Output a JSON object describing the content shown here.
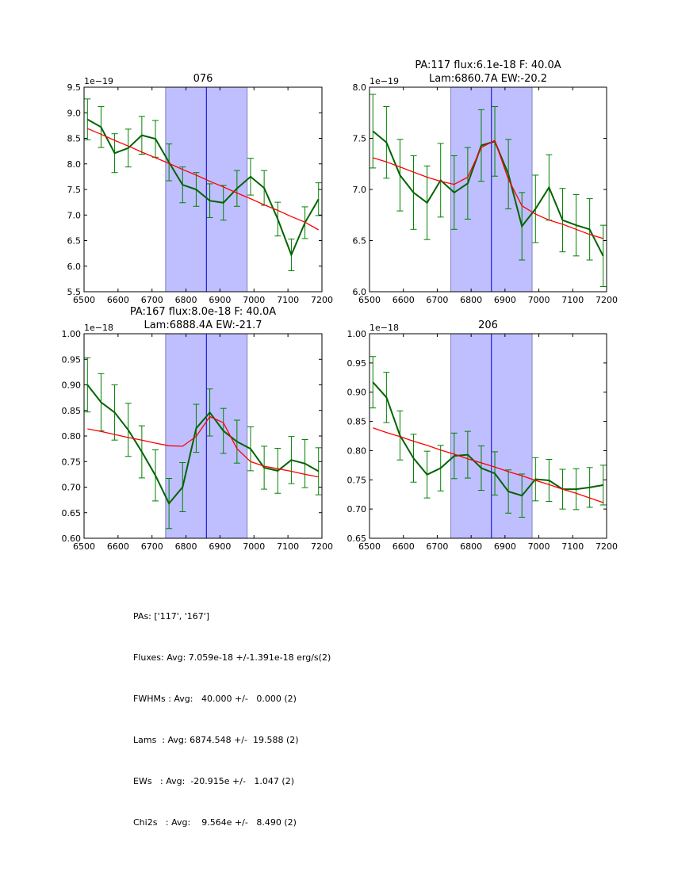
{
  "chart_data": [
    {
      "type": "line",
      "title": [
        "076"
      ],
      "xlabel": "",
      "ylabel": "",
      "xlim": [
        6500,
        7200
      ],
      "ylim": [
        5.5,
        9.5
      ],
      "y_offset_label": "1e−19",
      "xticks": [
        6500,
        6600,
        6700,
        6800,
        6900,
        7000,
        7100,
        7200
      ],
      "yticks": [
        5.5,
        6.0,
        6.5,
        7.0,
        7.5,
        8.0,
        8.5,
        9.0,
        9.5
      ],
      "ytick_labels": [
        "5.5",
        "6.0",
        "6.5",
        "7.0",
        "7.5",
        "8.0",
        "8.5",
        "9.0",
        "9.5"
      ],
      "shaded_band": [
        6740,
        6980
      ],
      "center_line": 6860,
      "x": [
        6510,
        6550,
        6590,
        6630,
        6670,
        6710,
        6750,
        6790,
        6830,
        6870,
        6910,
        6950,
        6990,
        7030,
        7070,
        7110,
        7150,
        7190
      ],
      "series": [
        {
          "name": "data",
          "color": "#006400",
          "values": [
            8.87,
            8.72,
            8.21,
            8.31,
            8.56,
            8.49,
            8.03,
            7.59,
            7.5,
            7.28,
            7.24,
            7.52,
            7.75,
            7.53,
            6.92,
            6.22,
            6.85,
            7.31
          ],
          "errors": [
            0.4,
            0.4,
            0.38,
            0.37,
            0.37,
            0.36,
            0.36,
            0.35,
            0.33,
            0.33,
            0.34,
            0.35,
            0.36,
            0.34,
            0.33,
            0.31,
            0.31,
            0.32
          ]
        },
        {
          "name": "fit",
          "color": "#ff0000",
          "values": [
            8.69,
            8.58,
            8.46,
            8.35,
            8.23,
            8.12,
            8.01,
            7.89,
            7.78,
            7.66,
            7.55,
            7.43,
            7.32,
            7.2,
            7.09,
            6.97,
            6.86,
            6.71
          ]
        }
      ]
    },
    {
      "type": "line",
      "title": [
        "PA:117 flux:6.1e-18 F: 40.0A",
        "Lam:6860.7A EW:-20.2"
      ],
      "xlabel": "",
      "ylabel": "",
      "xlim": [
        6500,
        7200
      ],
      "ylim": [
        6.0,
        8.0
      ],
      "y_offset_label": "1e−19",
      "xticks": [
        6500,
        6600,
        6700,
        6800,
        6900,
        7000,
        7100,
        7200
      ],
      "yticks": [
        6.0,
        6.5,
        7.0,
        7.5,
        8.0
      ],
      "ytick_labels": [
        "6.0",
        "6.5",
        "7.0",
        "7.5",
        "8.0"
      ],
      "shaded_band": [
        6740,
        6980
      ],
      "center_line": 6860,
      "x": [
        6510,
        6550,
        6590,
        6630,
        6670,
        6710,
        6750,
        6790,
        6830,
        6870,
        6910,
        6950,
        6990,
        7030,
        7070,
        7110,
        7150,
        7190
      ],
      "series": [
        {
          "name": "data",
          "color": "#006400",
          "values": [
            7.57,
            7.46,
            7.14,
            6.97,
            6.87,
            7.09,
            6.97,
            7.06,
            7.43,
            7.47,
            7.15,
            6.64,
            6.81,
            7.02,
            6.7,
            6.65,
            6.61,
            6.35
          ],
          "errors": [
            0.36,
            0.35,
            0.35,
            0.36,
            0.36,
            0.36,
            0.36,
            0.35,
            0.35,
            0.34,
            0.34,
            0.33,
            0.33,
            0.32,
            0.31,
            0.3,
            0.3,
            0.3
          ]
        },
        {
          "name": "fit",
          "color": "#ff0000",
          "values": [
            7.31,
            7.27,
            7.22,
            7.17,
            7.12,
            7.08,
            7.05,
            7.12,
            7.41,
            7.48,
            7.1,
            6.84,
            6.76,
            6.7,
            6.66,
            6.61,
            6.56,
            6.52
          ]
        }
      ]
    },
    {
      "type": "line",
      "title": [
        "PA:167 flux:8.0e-18 F: 40.0A",
        "Lam:6888.4A EW:-21.7"
      ],
      "xlabel": "",
      "ylabel": "",
      "xlim": [
        6500,
        7200
      ],
      "ylim": [
        0.6,
        1.0
      ],
      "y_offset_label": "1e−18",
      "xticks": [
        6500,
        6600,
        6700,
        6800,
        6900,
        7000,
        7100,
        7200
      ],
      "yticks": [
        0.6,
        0.65,
        0.7,
        0.75,
        0.8,
        0.85,
        0.9,
        0.95,
        1.0
      ],
      "ytick_labels": [
        "0.60",
        "0.65",
        "0.70",
        "0.75",
        "0.80",
        "0.85",
        "0.90",
        "0.95",
        "1.00"
      ],
      "shaded_band": [
        6740,
        6980
      ],
      "center_line": 6860,
      "x": [
        6510,
        6550,
        6590,
        6630,
        6670,
        6710,
        6750,
        6790,
        6830,
        6870,
        6910,
        6950,
        6990,
        7030,
        7070,
        7110,
        7150,
        7190
      ],
      "series": [
        {
          "name": "data",
          "color": "#006400",
          "values": [
            0.9,
            0.866,
            0.846,
            0.812,
            0.769,
            0.723,
            0.668,
            0.7,
            0.815,
            0.846,
            0.81,
            0.789,
            0.775,
            0.738,
            0.732,
            0.753,
            0.746,
            0.731
          ],
          "errors": [
            0.053,
            0.056,
            0.054,
            0.052,
            0.051,
            0.05,
            0.049,
            0.048,
            0.047,
            0.046,
            0.044,
            0.042,
            0.043,
            0.042,
            0.044,
            0.046,
            0.047,
            0.046
          ]
        },
        {
          "name": "fit",
          "color": "#ff0000",
          "values": [
            0.814,
            0.809,
            0.803,
            0.797,
            0.792,
            0.786,
            0.781,
            0.78,
            0.799,
            0.838,
            0.826,
            0.775,
            0.75,
            0.741,
            0.736,
            0.731,
            0.725,
            0.72
          ]
        }
      ]
    },
    {
      "type": "line",
      "title": [
        "206"
      ],
      "xlabel": "",
      "ylabel": "",
      "xlim": [
        6500,
        7200
      ],
      "ylim": [
        0.65,
        1.0
      ],
      "y_offset_label": "1e−18",
      "xticks": [
        6500,
        6600,
        6700,
        6800,
        6900,
        7000,
        7100,
        7200
      ],
      "yticks": [
        0.65,
        0.7,
        0.75,
        0.8,
        0.85,
        0.9,
        0.95,
        1.0
      ],
      "ytick_labels": [
        "0.65",
        "0.70",
        "0.75",
        "0.80",
        "0.85",
        "0.90",
        "0.95",
        "1.00"
      ],
      "shaded_band": [
        6740,
        6980
      ],
      "center_line": 6860,
      "x": [
        6510,
        6550,
        6590,
        6630,
        6670,
        6710,
        6750,
        6790,
        6830,
        6870,
        6910,
        6950,
        6990,
        7030,
        7070,
        7110,
        7150,
        7190
      ],
      "series": [
        {
          "name": "data",
          "color": "#006400",
          "values": [
            0.917,
            0.891,
            0.826,
            0.787,
            0.759,
            0.77,
            0.791,
            0.793,
            0.77,
            0.761,
            0.73,
            0.723,
            0.751,
            0.749,
            0.734,
            0.734,
            0.737,
            0.741
          ],
          "errors": [
            0.044,
            0.043,
            0.042,
            0.041,
            0.04,
            0.039,
            0.039,
            0.04,
            0.038,
            0.037,
            0.037,
            0.037,
            0.037,
            0.036,
            0.034,
            0.035,
            0.034,
            0.034
          ]
        },
        {
          "name": "fit",
          "color": "#ff0000",
          "values": [
            0.839,
            0.831,
            0.824,
            0.816,
            0.809,
            0.801,
            0.794,
            0.786,
            0.779,
            0.772,
            0.764,
            0.757,
            0.749,
            0.742,
            0.734,
            0.727,
            0.719,
            0.711
          ]
        }
      ]
    }
  ],
  "style": {
    "data_color": "#006400",
    "error_color": "#008000",
    "fit_color": "#ff0000",
    "band_color": "#bfbfff",
    "band_edge_color": "#8080c0",
    "center_line_color": "#0000cc"
  },
  "summary": {
    "pas": "PAs: ['117', '167']",
    "fluxes": "Fluxes: Avg: 7.059e-18 +/-1.391e-18 erg/s(2)",
    "fwhms": "FWHMs : Avg:   40.000 +/-   0.000 (2)",
    "lams": "Lams  : Avg: 6874.548 +/-  19.588 (2)",
    "ews": "EWs   : Avg:  -20.915e +/-   1.047 (2)",
    "chi2s": "Chi2s   : Avg:    9.564e +/-   8.490 (2)"
  }
}
